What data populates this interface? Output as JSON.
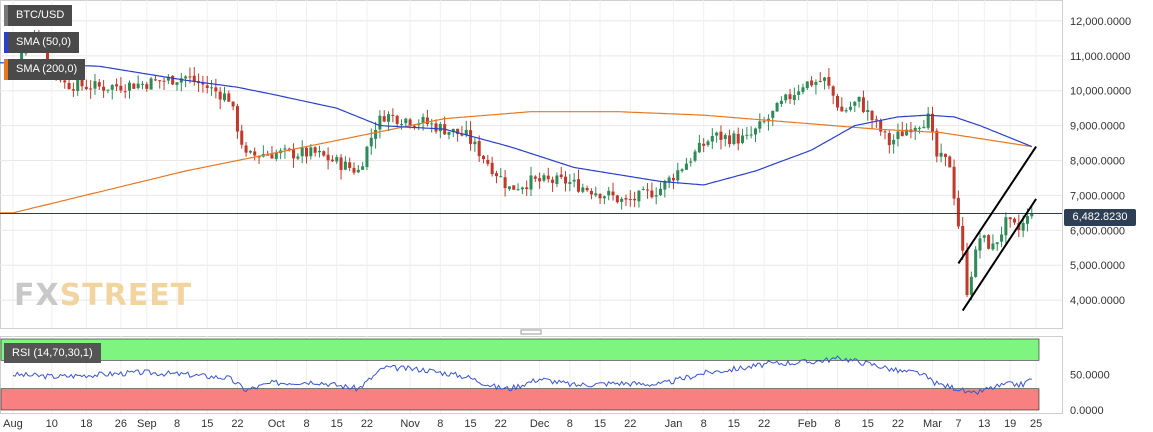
{
  "legends": {
    "symbol": "BTC/USD",
    "sma50": "SMA (50,0)",
    "sma200": "SMA (200,0)",
    "rsi": "RSI (14,70,30,1)"
  },
  "logo": {
    "fx": "FX",
    "street": "STREET"
  },
  "colors": {
    "up": "#2e8b57",
    "down": "#c0392b",
    "sma50": "#2940c8",
    "sma200": "#e87722",
    "rsi_line": "#3a55d0",
    "overbought": "#7ef57e",
    "oversold": "#f88080",
    "channel": "#000000"
  },
  "chart_data": [
    {
      "type": "candlestick",
      "title": "BTC/USD",
      "y_ticks": [
        "12,000.0000",
        "11,000.0000",
        "10,000.0000",
        "9,000.0000",
        "8,000.0000",
        "7,000.0000",
        "6,000.0000",
        "5,000.0000",
        "4,000.0000"
      ],
      "y_tick_values": [
        12000,
        11000,
        10000,
        9000,
        8000,
        7000,
        6000,
        5000,
        4000
      ],
      "ylim": [
        3200,
        12600
      ],
      "last_price": 6482.823,
      "last_price_label": "6,482.8230",
      "x_ticks": [
        "Aug",
        "10",
        "18",
        "26",
        "Sep",
        "8",
        "15",
        "22",
        "Oct",
        "8",
        "15",
        "22",
        "Nov",
        "8",
        "15",
        "22",
        "Dec",
        "8",
        "15",
        "22",
        "Jan",
        "8",
        "15",
        "22",
        "Feb",
        "8",
        "15",
        "22",
        "Mar",
        "7",
        "13",
        "19",
        "25"
      ],
      "x_tick_days": [
        0,
        9,
        17,
        25,
        31,
        38,
        45,
        52,
        61,
        68,
        75,
        82,
        92,
        99,
        106,
        113,
        122,
        129,
        136,
        143,
        153,
        160,
        167,
        174,
        184,
        191,
        198,
        205,
        213,
        219,
        225,
        231,
        237
      ],
      "close_series": {
        "keyframes_day": [
          0,
          5,
          12,
          20,
          30,
          40,
          50,
          54,
          58,
          70,
          80,
          84,
          86,
          95,
          105,
          115,
          120,
          128,
          138,
          142,
          150,
          162,
          170,
          175,
          178,
          183,
          188,
          192,
          196,
          203,
          208,
          212,
          214,
          217,
          220,
          221,
          224,
          227,
          230,
          233,
          236
        ],
        "keyframes_close": [
          10700,
          11600,
          10200,
          10100,
          10200,
          10400,
          9800,
          8100,
          8200,
          8200,
          7700,
          9000,
          9300,
          9100,
          8700,
          7200,
          7400,
          7400,
          7000,
          6800,
          7200,
          8700,
          8600,
          9200,
          9600,
          10200,
          10300,
          9400,
          9700,
          8500,
          9000,
          9200,
          8100,
          7900,
          5300,
          4300,
          5800,
          5500,
          6200,
          6000,
          6480
        ]
      },
      "sma50": {
        "days": [
          0,
          20,
          40,
          52,
          60,
          75,
          85,
          100,
          115,
          130,
          150,
          160,
          172,
          185,
          195,
          205,
          212,
          218,
          224,
          230,
          236
        ],
        "values": [
          10800,
          10700,
          10300,
          10100,
          9900,
          9500,
          9000,
          8900,
          8400,
          7800,
          7400,
          7300,
          7700,
          8300,
          9000,
          9250,
          9300,
          9250,
          9000,
          8700,
          8400
        ]
      },
      "sma200": {
        "days": [
          0,
          40,
          80,
          100,
          120,
          140,
          160,
          180,
          200,
          215,
          236
        ],
        "values": [
          6500,
          7700,
          8700,
          9200,
          9400,
          9400,
          9300,
          9100,
          8900,
          8800,
          8400
        ]
      },
      "channel": {
        "upper": {
          "start": [
            219,
            5050
          ],
          "end": [
            237,
            8400
          ]
        },
        "lower": {
          "start": [
            220,
            3700
          ],
          "end": [
            237,
            6900
          ]
        }
      }
    },
    {
      "type": "line",
      "title": "RSI (14,70,30,1)",
      "y_ticks": [
        "50.0000",
        "0.0000"
      ],
      "y_tick_values": [
        50,
        0
      ],
      "ylim": [
        0,
        100
      ],
      "overbought": 70,
      "oversold": 30,
      "rsi": {
        "days": [
          0,
          10,
          20,
          30,
          40,
          50,
          54,
          60,
          70,
          80,
          84,
          86,
          95,
          105,
          112,
          115,
          122,
          130,
          140,
          150,
          160,
          170,
          175,
          185,
          192,
          200,
          205,
          210,
          214,
          219,
          222,
          226,
          230,
          234,
          236
        ],
        "values": [
          50,
          47,
          50,
          53,
          50,
          45,
          28,
          38,
          40,
          30,
          50,
          60,
          57,
          47,
          32,
          30,
          44,
          35,
          38,
          36,
          52,
          60,
          65,
          68,
          73,
          63,
          55,
          52,
          37,
          30,
          22,
          30,
          36,
          36,
          45
        ]
      }
    }
  ]
}
